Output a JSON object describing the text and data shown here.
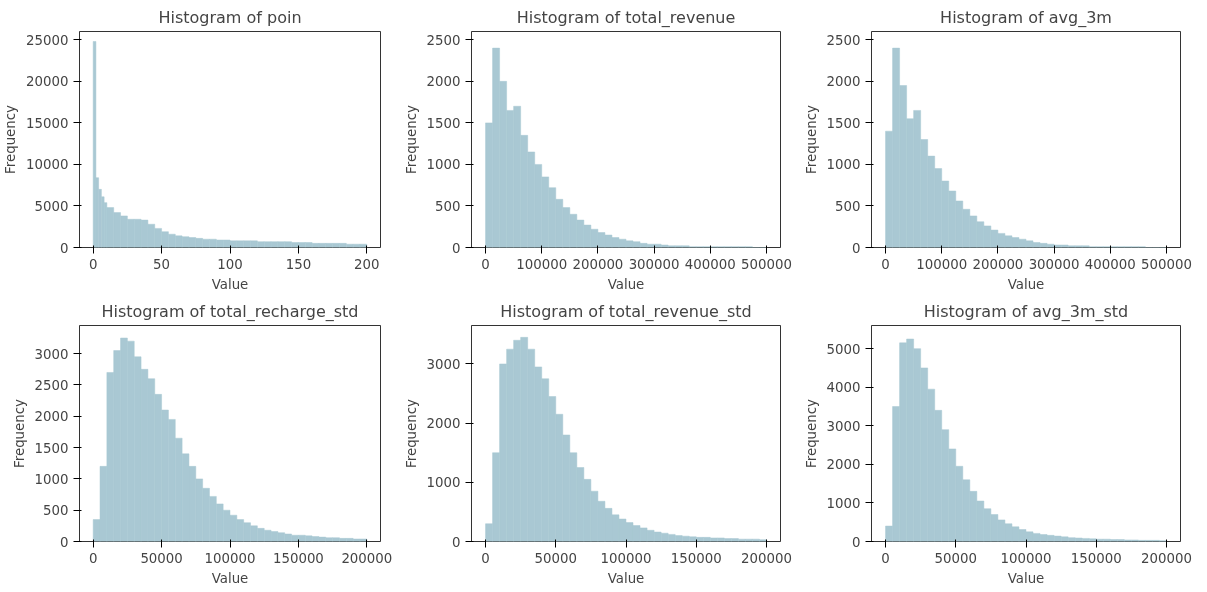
{
  "chart_data": [
    {
      "type": "histogram",
      "title": "Histogram of poin",
      "xlabel": "Value",
      "ylabel": "Frequency",
      "color": "#a9c8d3",
      "grid": false,
      "xlim": [
        -10,
        210
      ],
      "xticks": [
        0,
        50,
        100,
        150,
        200
      ],
      "ylim": [
        0,
        26000
      ],
      "yticks": [
        0,
        5000,
        10000,
        15000,
        20000,
        25000
      ],
      "bins": [
        0,
        2,
        4,
        6,
        8,
        10,
        15,
        20,
        25,
        30,
        35,
        40,
        45,
        50,
        55,
        60,
        65,
        70,
        75,
        80,
        85,
        90,
        95,
        100,
        105,
        110,
        115,
        120,
        125,
        130,
        135,
        140,
        145,
        150,
        155,
        160,
        165,
        170,
        175,
        180,
        185,
        190,
        195,
        200
      ],
      "values": [
        24800,
        8400,
        7000,
        6100,
        5400,
        4800,
        4200,
        3800,
        3400,
        3400,
        3300,
        2800,
        2300,
        1900,
        1600,
        1400,
        1300,
        1200,
        1100,
        1000,
        1000,
        900,
        900,
        800,
        800,
        800,
        800,
        700,
        700,
        700,
        700,
        700,
        600,
        600,
        600,
        500,
        500,
        500,
        500,
        500,
        400,
        400,
        400
      ]
    },
    {
      "type": "histogram",
      "title": "Histogram of total_revenue",
      "xlabel": "Value",
      "ylabel": "Frequency",
      "color": "#a9c8d3",
      "grid": false,
      "xlim": [
        -25000,
        525000
      ],
      "xticks": [
        0,
        100000,
        200000,
        300000,
        400000,
        500000
      ],
      "ylim": [
        0,
        2600
      ],
      "yticks": [
        0,
        500,
        1000,
        1500,
        2000,
        2500
      ],
      "bins": [
        0,
        12500,
        25000,
        37500,
        50000,
        62500,
        75000,
        87500,
        100000,
        112500,
        125000,
        137500,
        150000,
        162500,
        175000,
        187500,
        200000,
        212500,
        225000,
        237500,
        250000,
        262500,
        275000,
        287500,
        300000,
        312500,
        325000,
        337500,
        350000,
        362500,
        375000,
        387500,
        400000,
        412500,
        425000,
        437500,
        450000,
        462500,
        475000,
        487500,
        500000
      ],
      "values": [
        1500,
        2400,
        2000,
        1650,
        1700,
        1350,
        1150,
        1000,
        850,
        720,
        580,
        480,
        400,
        330,
        270,
        220,
        180,
        150,
        120,
        100,
        80,
        70,
        50,
        40,
        40,
        30,
        20,
        20,
        20,
        10,
        10,
        10,
        10,
        10,
        10,
        10,
        10,
        10,
        0,
        0
      ]
    },
    {
      "type": "histogram",
      "title": "Histogram of avg_3m",
      "xlabel": "Value",
      "ylabel": "Frequency",
      "color": "#a9c8d3",
      "grid": false,
      "xlim": [
        -25000,
        525000
      ],
      "xticks": [
        0,
        100000,
        200000,
        300000,
        400000,
        500000
      ],
      "ylim": [
        0,
        2600
      ],
      "yticks": [
        0,
        500,
        1000,
        1500,
        2000,
        2500
      ],
      "bins": [
        0,
        12500,
        25000,
        37500,
        50000,
        62500,
        75000,
        87500,
        100000,
        112500,
        125000,
        137500,
        150000,
        162500,
        175000,
        187500,
        200000,
        212500,
        225000,
        237500,
        250000,
        262500,
        275000,
        287500,
        300000,
        312500,
        325000,
        337500,
        350000,
        362500,
        375000,
        387500,
        400000,
        412500,
        425000,
        437500,
        450000,
        462500,
        475000,
        487500,
        500000
      ],
      "values": [
        1400,
        2400,
        1950,
        1550,
        1650,
        1300,
        1100,
        950,
        800,
        680,
        560,
        460,
        380,
        310,
        260,
        210,
        170,
        140,
        120,
        100,
        80,
        60,
        50,
        40,
        30,
        30,
        20,
        20,
        20,
        10,
        10,
        10,
        10,
        10,
        10,
        10,
        10,
        0,
        0,
        0
      ]
    },
    {
      "type": "histogram",
      "title": "Histogram of total_recharge_std",
      "xlabel": "Value",
      "ylabel": "Frequency",
      "color": "#a9c8d3",
      "grid": false,
      "xlim": [
        -10000,
        210000
      ],
      "xticks": [
        0,
        50000,
        100000,
        150000,
        200000
      ],
      "ylim": [
        0,
        3450
      ],
      "yticks": [
        0,
        500,
        1000,
        1500,
        2000,
        2500,
        3000
      ],
      "bins": [
        0,
        5000,
        10000,
        15000,
        20000,
        25000,
        30000,
        35000,
        40000,
        45000,
        50000,
        55000,
        60000,
        65000,
        70000,
        75000,
        80000,
        85000,
        90000,
        95000,
        100000,
        105000,
        110000,
        115000,
        120000,
        125000,
        130000,
        135000,
        140000,
        145000,
        150000,
        155000,
        160000,
        165000,
        170000,
        175000,
        180000,
        185000,
        190000,
        195000,
        200000
      ],
      "values": [
        350,
        1200,
        2700,
        3050,
        3250,
        3200,
        2950,
        2750,
        2600,
        2350,
        2100,
        1950,
        1650,
        1400,
        1200,
        1000,
        850,
        720,
        600,
        500,
        420,
        350,
        300,
        250,
        210,
        180,
        160,
        140,
        120,
        100,
        100,
        90,
        80,
        70,
        60,
        60,
        50,
        50,
        40,
        40
      ]
    },
    {
      "type": "histogram",
      "title": "Histogram of total_revenue_std",
      "xlabel": "Value",
      "ylabel": "Frequency",
      "color": "#a9c8d3",
      "grid": false,
      "xlim": [
        -10000,
        210000
      ],
      "xticks": [
        0,
        50000,
        100000,
        150000,
        200000
      ],
      "ylim": [
        0,
        3650
      ],
      "yticks": [
        0,
        1000,
        2000,
        3000
      ],
      "bins": [
        0,
        5000,
        10000,
        15000,
        20000,
        25000,
        30000,
        35000,
        40000,
        45000,
        50000,
        55000,
        60000,
        65000,
        70000,
        75000,
        80000,
        85000,
        90000,
        95000,
        100000,
        105000,
        110000,
        115000,
        120000,
        125000,
        130000,
        135000,
        140000,
        145000,
        150000,
        155000,
        160000,
        165000,
        170000,
        175000,
        180000,
        185000,
        190000,
        195000,
        200000
      ],
      "values": [
        300,
        1500,
        3000,
        3250,
        3400,
        3450,
        3250,
        2950,
        2750,
        2450,
        2150,
        1800,
        1500,
        1250,
        1050,
        850,
        680,
        560,
        450,
        380,
        320,
        270,
        230,
        190,
        160,
        140,
        120,
        100,
        90,
        80,
        70,
        70,
        60,
        60,
        50,
        50,
        40,
        40,
        40,
        30
      ]
    },
    {
      "type": "histogram",
      "title": "Histogram of avg_3m_std",
      "xlabel": "Value",
      "ylabel": "Frequency",
      "color": "#a9c8d3",
      "grid": false,
      "xlim": [
        -10000,
        210000
      ],
      "xticks": [
        0,
        50000,
        100000,
        150000,
        200000
      ],
      "ylim": [
        0,
        5600
      ],
      "yticks": [
        0,
        1000,
        2000,
        3000,
        4000,
        5000
      ],
      "bins": [
        0,
        5000,
        10000,
        15000,
        20000,
        25000,
        30000,
        35000,
        40000,
        45000,
        50000,
        55000,
        60000,
        65000,
        70000,
        75000,
        80000,
        85000,
        90000,
        95000,
        100000,
        105000,
        110000,
        115000,
        120000,
        125000,
        130000,
        135000,
        140000,
        145000,
        150000,
        155000,
        160000,
        165000,
        170000,
        175000,
        180000,
        185000,
        190000,
        195000,
        200000
      ],
      "values": [
        400,
        3500,
        5150,
        5250,
        5000,
        4500,
        3950,
        3400,
        2900,
        2400,
        1950,
        1600,
        1300,
        1050,
        850,
        700,
        560,
        460,
        380,
        310,
        250,
        210,
        180,
        160,
        140,
        120,
        100,
        90,
        80,
        70,
        60,
        60,
        50,
        50,
        40,
        40,
        30,
        30,
        30,
        20
      ]
    }
  ]
}
